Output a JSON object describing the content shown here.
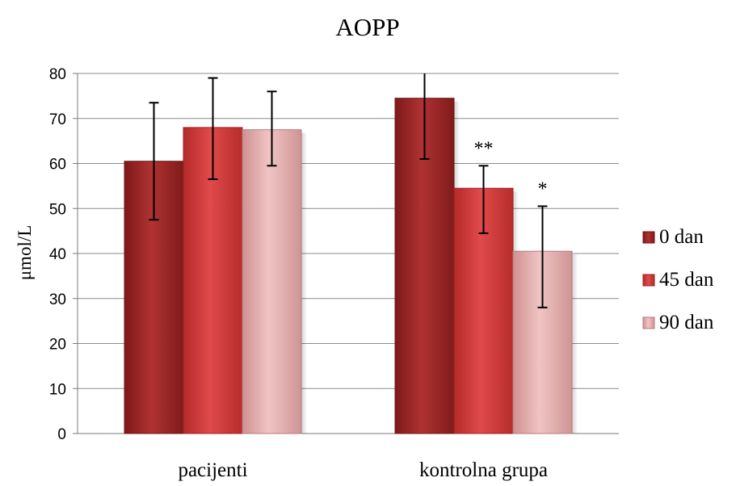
{
  "chart_data": {
    "type": "bar",
    "title": "AOPP",
    "xlabel": "",
    "ylabel": "μmol/L",
    "ylim": [
      0,
      80
    ],
    "yticks": [
      "0",
      "10",
      "20",
      "30",
      "40",
      "50",
      "60",
      "70",
      "80"
    ],
    "categories": [
      "pacijenti",
      "kontrolna grupa"
    ],
    "series": [
      {
        "name": "0 dan",
        "values": [
          60.5,
          74.5
        ],
        "err_low": [
          47.5,
          61
        ],
        "err_high": [
          73.5,
          80
        ]
      },
      {
        "name": "45 dan",
        "values": [
          68,
          54.5
        ],
        "err_low": [
          56.5,
          44.5
        ],
        "err_high": [
          79,
          59.5
        ]
      },
      {
        "name": "90 dan",
        "values": [
          67.5,
          40.5
        ],
        "err_low": [
          59.5,
          28
        ],
        "err_high": [
          76,
          50.5
        ]
      }
    ],
    "annotations": [
      {
        "series": 1,
        "category": 1,
        "text": "**"
      },
      {
        "series": 2,
        "category": 1,
        "text": "*"
      }
    ],
    "grid": true,
    "legend": "right",
    "colors": {
      "series": [
        "#9e2424",
        "#cf3a3a",
        "#dfa7a7"
      ],
      "series_edge": [
        "#6f1515",
        "#9c2222",
        "#b77979"
      ],
      "grid": "#8c8c8c",
      "axis": "#7a7a7a"
    }
  }
}
